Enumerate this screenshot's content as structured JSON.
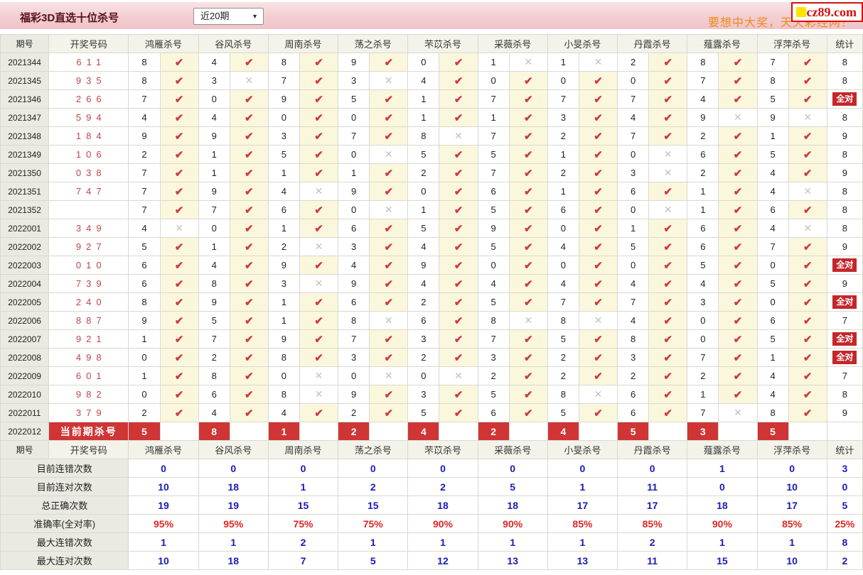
{
  "topbar": {
    "title": "福彩3D直选十位杀号",
    "dropdown": {
      "value": "近20期",
      "caret": "▼"
    },
    "slogan": "要想中大奖，天天彩经网！",
    "logo_text": "cz89.com"
  },
  "table": {
    "headers": {
      "period": "期号",
      "draw": "开奖号码",
      "experts": [
        "鸿雁杀号",
        "谷风杀号",
        "周南杀号",
        "荡之杀号",
        "芣苡杀号",
        "采薇杀号",
        "小旻杀号",
        "丹霞杀号",
        "薤露杀号",
        "浮萍杀号"
      ],
      "stat": "统计"
    },
    "marks": {
      "check": "✔",
      "cross": "✕"
    },
    "full_match_label": "全对",
    "rows": [
      {
        "period": "2021344",
        "draw": "611",
        "kills": [
          [
            "8",
            1
          ],
          [
            "4",
            1
          ],
          [
            "8",
            1
          ],
          [
            "9",
            1
          ],
          [
            "0",
            1
          ],
          [
            "1",
            0
          ],
          [
            "1",
            0
          ],
          [
            "2",
            1
          ],
          [
            "8",
            1
          ],
          [
            "7",
            1
          ]
        ],
        "stat": "8",
        "full": false
      },
      {
        "period": "2021345",
        "draw": "935",
        "kills": [
          [
            "8",
            1
          ],
          [
            "3",
            0
          ],
          [
            "7",
            1
          ],
          [
            "3",
            0
          ],
          [
            "4",
            1
          ],
          [
            "0",
            1
          ],
          [
            "0",
            1
          ],
          [
            "0",
            1
          ],
          [
            "7",
            1
          ],
          [
            "8",
            1
          ]
        ],
        "stat": "8",
        "full": false
      },
      {
        "period": "2021346",
        "draw": "266",
        "kills": [
          [
            "7",
            1
          ],
          [
            "0",
            1
          ],
          [
            "9",
            1
          ],
          [
            "5",
            1
          ],
          [
            "1",
            1
          ],
          [
            "7",
            1
          ],
          [
            "7",
            1
          ],
          [
            "7",
            1
          ],
          [
            "4",
            1
          ],
          [
            "5",
            1
          ]
        ],
        "stat": "全对",
        "full": true
      },
      {
        "period": "2021347",
        "draw": "594",
        "kills": [
          [
            "4",
            1
          ],
          [
            "4",
            1
          ],
          [
            "0",
            1
          ],
          [
            "0",
            1
          ],
          [
            "1",
            1
          ],
          [
            "1",
            1
          ],
          [
            "3",
            1
          ],
          [
            "4",
            1
          ],
          [
            "9",
            0
          ],
          [
            "9",
            0
          ]
        ],
        "stat": "8",
        "full": false
      },
      {
        "period": "2021348",
        "draw": "184",
        "kills": [
          [
            "9",
            1
          ],
          [
            "9",
            1
          ],
          [
            "3",
            1
          ],
          [
            "7",
            1
          ],
          [
            "8",
            0
          ],
          [
            "7",
            1
          ],
          [
            "2",
            1
          ],
          [
            "7",
            1
          ],
          [
            "2",
            1
          ],
          [
            "1",
            1
          ]
        ],
        "stat": "9",
        "full": false
      },
      {
        "period": "2021349",
        "draw": "106",
        "kills": [
          [
            "2",
            1
          ],
          [
            "1",
            1
          ],
          [
            "5",
            1
          ],
          [
            "0",
            0
          ],
          [
            "5",
            1
          ],
          [
            "5",
            1
          ],
          [
            "1",
            1
          ],
          [
            "0",
            0
          ],
          [
            "6",
            1
          ],
          [
            "5",
            1
          ]
        ],
        "stat": "8",
        "full": false
      },
      {
        "period": "2021350",
        "draw": "038",
        "kills": [
          [
            "7",
            1
          ],
          [
            "1",
            1
          ],
          [
            "1",
            1
          ],
          [
            "1",
            1
          ],
          [
            "2",
            1
          ],
          [
            "7",
            1
          ],
          [
            "2",
            1
          ],
          [
            "3",
            0
          ],
          [
            "2",
            1
          ],
          [
            "4",
            1
          ]
        ],
        "stat": "9",
        "full": false
      },
      {
        "period": "2021351",
        "draw": "747",
        "kills": [
          [
            "7",
            1
          ],
          [
            "9",
            1
          ],
          [
            "4",
            0
          ],
          [
            "9",
            1
          ],
          [
            "0",
            1
          ],
          [
            "6",
            1
          ],
          [
            "1",
            1
          ],
          [
            "6",
            1
          ],
          [
            "1",
            1
          ],
          [
            "4",
            0
          ]
        ],
        "stat": "8",
        "full": false
      },
      {
        "period": "2021352",
        "draw": "",
        "kills": [
          [
            "7",
            1
          ],
          [
            "7",
            1
          ],
          [
            "6",
            1
          ],
          [
            "0",
            0
          ],
          [
            "1",
            1
          ],
          [
            "5",
            1
          ],
          [
            "6",
            1
          ],
          [
            "0",
            0
          ],
          [
            "1",
            1
          ],
          [
            "6",
            1
          ]
        ],
        "stat": "8",
        "full": false
      },
      {
        "period": "2022001",
        "draw": "349",
        "kills": [
          [
            "4",
            0
          ],
          [
            "0",
            1
          ],
          [
            "1",
            1
          ],
          [
            "6",
            1
          ],
          [
            "5",
            1
          ],
          [
            "9",
            1
          ],
          [
            "0",
            1
          ],
          [
            "1",
            1
          ],
          [
            "6",
            1
          ],
          [
            "4",
            0
          ]
        ],
        "stat": "8",
        "full": false
      },
      {
        "period": "2022002",
        "draw": "927",
        "kills": [
          [
            "5",
            1
          ],
          [
            "1",
            1
          ],
          [
            "2",
            0
          ],
          [
            "3",
            1
          ],
          [
            "4",
            1
          ],
          [
            "5",
            1
          ],
          [
            "4",
            1
          ],
          [
            "5",
            1
          ],
          [
            "6",
            1
          ],
          [
            "7",
            1
          ]
        ],
        "stat": "9",
        "full": false
      },
      {
        "period": "2022003",
        "draw": "010",
        "kills": [
          [
            "6",
            1
          ],
          [
            "4",
            1
          ],
          [
            "9",
            1
          ],
          [
            "4",
            1
          ],
          [
            "9",
            1
          ],
          [
            "0",
            1
          ],
          [
            "0",
            1
          ],
          [
            "0",
            1
          ],
          [
            "5",
            1
          ],
          [
            "0",
            1
          ]
        ],
        "stat": "全对",
        "full": true
      },
      {
        "period": "2022004",
        "draw": "739",
        "kills": [
          [
            "6",
            1
          ],
          [
            "8",
            1
          ],
          [
            "3",
            0
          ],
          [
            "9",
            1
          ],
          [
            "4",
            1
          ],
          [
            "4",
            1
          ],
          [
            "4",
            1
          ],
          [
            "4",
            1
          ],
          [
            "4",
            1
          ],
          [
            "5",
            1
          ]
        ],
        "stat": "9",
        "full": false
      },
      {
        "period": "2022005",
        "draw": "240",
        "kills": [
          [
            "8",
            1
          ],
          [
            "9",
            1
          ],
          [
            "1",
            1
          ],
          [
            "6",
            1
          ],
          [
            "2",
            1
          ],
          [
            "5",
            1
          ],
          [
            "7",
            1
          ],
          [
            "7",
            1
          ],
          [
            "3",
            1
          ],
          [
            "0",
            1
          ]
        ],
        "stat": "全对",
        "full": true
      },
      {
        "period": "2022006",
        "draw": "887",
        "kills": [
          [
            "9",
            1
          ],
          [
            "5",
            1
          ],
          [
            "1",
            1
          ],
          [
            "8",
            0
          ],
          [
            "6",
            1
          ],
          [
            "8",
            0
          ],
          [
            "8",
            0
          ],
          [
            "4",
            1
          ],
          [
            "0",
            1
          ],
          [
            "6",
            1
          ]
        ],
        "stat": "7",
        "full": false
      },
      {
        "period": "2022007",
        "draw": "921",
        "kills": [
          [
            "1",
            1
          ],
          [
            "7",
            1
          ],
          [
            "9",
            1
          ],
          [
            "7",
            1
          ],
          [
            "3",
            1
          ],
          [
            "7",
            1
          ],
          [
            "5",
            1
          ],
          [
            "8",
            1
          ],
          [
            "0",
            1
          ],
          [
            "5",
            1
          ]
        ],
        "stat": "全对",
        "full": true
      },
      {
        "period": "2022008",
        "draw": "498",
        "kills": [
          [
            "0",
            1
          ],
          [
            "2",
            1
          ],
          [
            "8",
            1
          ],
          [
            "3",
            1
          ],
          [
            "2",
            1
          ],
          [
            "3",
            1
          ],
          [
            "2",
            1
          ],
          [
            "3",
            1
          ],
          [
            "7",
            1
          ],
          [
            "1",
            1
          ]
        ],
        "stat": "全对",
        "full": true
      },
      {
        "period": "2022009",
        "draw": "601",
        "kills": [
          [
            "1",
            1
          ],
          [
            "8",
            1
          ],
          [
            "0",
            0
          ],
          [
            "0",
            0
          ],
          [
            "0",
            0
          ],
          [
            "2",
            1
          ],
          [
            "2",
            1
          ],
          [
            "2",
            1
          ],
          [
            "2",
            1
          ],
          [
            "4",
            1
          ]
        ],
        "stat": "7",
        "full": false
      },
      {
        "period": "2022010",
        "draw": "982",
        "kills": [
          [
            "0",
            1
          ],
          [
            "6",
            1
          ],
          [
            "8",
            0
          ],
          [
            "9",
            1
          ],
          [
            "3",
            1
          ],
          [
            "5",
            1
          ],
          [
            "8",
            0
          ],
          [
            "6",
            1
          ],
          [
            "1",
            1
          ],
          [
            "4",
            1
          ]
        ],
        "stat": "8",
        "full": false
      },
      {
        "period": "2022011",
        "draw": "379",
        "kills": [
          [
            "2",
            1
          ],
          [
            "4",
            1
          ],
          [
            "4",
            1
          ],
          [
            "2",
            1
          ],
          [
            "5",
            1
          ],
          [
            "6",
            1
          ],
          [
            "5",
            1
          ],
          [
            "6",
            1
          ],
          [
            "7",
            0
          ],
          [
            "8",
            1
          ]
        ],
        "stat": "9",
        "full": false
      }
    ],
    "current": {
      "period": "2022012",
      "label": "当前期杀号",
      "kills": [
        "5",
        "8",
        "1",
        "2",
        "4",
        "2",
        "4",
        "5",
        "3",
        "5"
      ],
      "stat": ""
    },
    "summary": [
      {
        "label": "目前连错次数",
        "values": [
          "0",
          "0",
          "0",
          "0",
          "0",
          "0",
          "0",
          "0",
          "1",
          "0"
        ],
        "stat": "3",
        "color": "blue"
      },
      {
        "label": "目前连对次数",
        "values": [
          "10",
          "18",
          "1",
          "2",
          "2",
          "5",
          "1",
          "11",
          "0",
          "10"
        ],
        "stat": "0",
        "color": "blue"
      },
      {
        "label": "总正确次数",
        "values": [
          "19",
          "19",
          "15",
          "15",
          "18",
          "18",
          "17",
          "17",
          "18",
          "17"
        ],
        "stat": "5",
        "color": "blue"
      },
      {
        "label": "准确率(全对率)",
        "values": [
          "95%",
          "95%",
          "75%",
          "75%",
          "90%",
          "90%",
          "85%",
          "85%",
          "90%",
          "85%"
        ],
        "stat": "25%",
        "color": "red"
      },
      {
        "label": "最大连错次数",
        "values": [
          "1",
          "1",
          "2",
          "1",
          "1",
          "1",
          "1",
          "2",
          "1",
          "1"
        ],
        "stat": "8",
        "color": "blue"
      },
      {
        "label": "最大连对次数",
        "values": [
          "10",
          "18",
          "7",
          "5",
          "12",
          "13",
          "13",
          "11",
          "15",
          "10"
        ],
        "stat": "2",
        "color": "blue"
      }
    ]
  }
}
